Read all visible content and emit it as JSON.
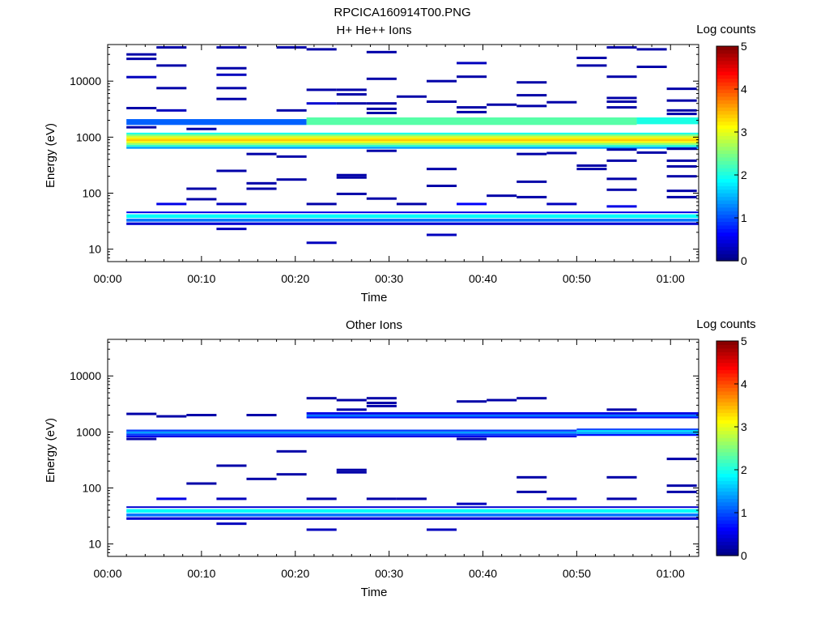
{
  "figure": {
    "title": "RPCICA160914T00.PNG"
  },
  "chart_data": [
    {
      "type": "heatmap",
      "title": "H+ He++ Ions",
      "xlabel": "Time",
      "ylabel": "Energy (eV)",
      "colorbar_label": "Log counts",
      "colorbar_ticks": [
        "0",
        "1",
        "2",
        "3",
        "4",
        "5"
      ],
      "clim": [
        0,
        5
      ],
      "colormap": "jet",
      "x_ticks": [
        "00:00",
        "00:10",
        "00:20",
        "00:30",
        "00:40",
        "00:50",
        "01:00"
      ],
      "x_range_minutes": [
        0,
        63
      ],
      "y_scale": "log",
      "y_range_eV": [
        6,
        45000
      ],
      "y_ticks": [
        "10",
        "100",
        "1000",
        "10000"
      ],
      "grid": false,
      "sample_time_minutes": [
        2,
        5.2,
        8.4,
        11.6,
        14.8,
        18,
        21.2,
        24.4,
        27.6,
        30.8,
        34,
        37.2,
        40.4,
        43.6,
        46.8,
        50,
        53.2,
        56.4,
        59.6
      ],
      "bands": [
        {
          "from_min": 2,
          "to_min": 63,
          "energy_low_eV": 620,
          "energy_high_eV": 1200,
          "log_counts_profile": [
            [
              650,
              1.4
            ],
            [
              700,
              2.1
            ],
            [
              760,
              2.6
            ],
            [
              820,
              3.1
            ],
            [
              880,
              3.4
            ],
            [
              950,
              3.2
            ],
            [
              1020,
              2.9
            ],
            [
              1100,
              2.4
            ],
            [
              1180,
              1.9
            ]
          ]
        },
        {
          "from_min": 2,
          "to_min": 21.2,
          "energy_low_eV": 1650,
          "energy_high_eV": 2100,
          "log_counts": 1.1
        },
        {
          "from_min": 21.2,
          "to_min": 56.4,
          "energy_low_eV": 1650,
          "energy_high_eV": 2250,
          "log_counts": 2.3
        },
        {
          "from_min": 56.4,
          "to_min": 63,
          "energy_low_eV": 1700,
          "energy_high_eV": 2250,
          "log_counts": 2.0
        },
        {
          "from_min": 2,
          "to_min": 63,
          "energy_low_eV": 44,
          "energy_high_eV": 47,
          "log_counts": 0.5
        },
        {
          "from_min": 2,
          "to_min": 63,
          "energy_low_eV": 36,
          "energy_high_eV": 42,
          "log_counts": 1.9
        },
        {
          "from_min": 2,
          "to_min": 63,
          "energy_low_eV": 31,
          "energy_high_eV": 35,
          "log_counts": 1.2
        },
        {
          "from_min": 2,
          "to_min": 63,
          "energy_low_eV": 27,
          "energy_high_eV": 30,
          "log_counts": 0.4
        }
      ],
      "isolated_bins": [
        [
          2,
          30000,
          0.2
        ],
        [
          2,
          25000,
          0.2
        ],
        [
          2,
          11800,
          0.3
        ],
        [
          2,
          3300,
          0.2
        ],
        [
          2,
          1500,
          0.2
        ],
        [
          5.2,
          40000,
          0.2
        ],
        [
          5.2,
          19000,
          0.2
        ],
        [
          5.2,
          7500,
          0.2
        ],
        [
          5.2,
          3000,
          0.3
        ],
        [
          5.2,
          64,
          0.5
        ],
        [
          8.4,
          1400,
          0.2
        ],
        [
          8.4,
          120,
          0.2
        ],
        [
          8.4,
          78,
          0.2
        ],
        [
          11.6,
          40000,
          0.2
        ],
        [
          11.6,
          17000,
          0.2
        ],
        [
          11.6,
          13000,
          0.3
        ],
        [
          11.6,
          7500,
          0.2
        ],
        [
          11.6,
          4800,
          0.2
        ],
        [
          11.6,
          250,
          0.2
        ],
        [
          11.6,
          64,
          0.3
        ],
        [
          11.6,
          23,
          0.3
        ],
        [
          14.8,
          500,
          0.2
        ],
        [
          14.8,
          150,
          0.2
        ],
        [
          14.8,
          120,
          0.2
        ],
        [
          18,
          40000,
          0.2
        ],
        [
          18,
          3000,
          0.2
        ],
        [
          18,
          450,
          0.2
        ],
        [
          18,
          175,
          0.2
        ],
        [
          21.2,
          37000,
          0.2
        ],
        [
          21.2,
          7000,
          0.2
        ],
        [
          21.2,
          4000,
          0.4
        ],
        [
          21.2,
          64,
          0.2
        ],
        [
          21.2,
          13,
          0.3
        ],
        [
          24.4,
          7000,
          0.2
        ],
        [
          24.4,
          5800,
          0.2
        ],
        [
          24.4,
          4000,
          0.2
        ],
        [
          24.4,
          210,
          0.2
        ],
        [
          24.4,
          190,
          0.2
        ],
        [
          24.4,
          97,
          0.2
        ],
        [
          27.6,
          33000,
          0.2
        ],
        [
          27.6,
          11000,
          0.2
        ],
        [
          27.6,
          4000,
          0.2
        ],
        [
          27.6,
          3200,
          0.2
        ],
        [
          27.6,
          2700,
          0.2
        ],
        [
          27.6,
          570,
          0.2
        ],
        [
          27.6,
          80,
          0.2
        ],
        [
          30.8,
          5300,
          0.2
        ],
        [
          30.8,
          64,
          0.2
        ],
        [
          34,
          10000,
          0.2
        ],
        [
          34,
          4300,
          0.2
        ],
        [
          34,
          270,
          0.2
        ],
        [
          34,
          135,
          0.2
        ],
        [
          34,
          18,
          0.3
        ],
        [
          37.2,
          21000,
          0.3
        ],
        [
          37.2,
          12000,
          0.2
        ],
        [
          37.2,
          3400,
          0.2
        ],
        [
          37.2,
          2800,
          0.2
        ],
        [
          37.2,
          64,
          0.6
        ],
        [
          40.4,
          3800,
          0.2
        ],
        [
          40.4,
          90,
          0.2
        ],
        [
          43.6,
          9500,
          0.2
        ],
        [
          43.6,
          5600,
          0.2
        ],
        [
          43.6,
          3600,
          0.2
        ],
        [
          43.6,
          500,
          0.2
        ],
        [
          43.6,
          160,
          0.2
        ],
        [
          43.6,
          85,
          0.2
        ],
        [
          46.8,
          4200,
          0.2
        ],
        [
          46.8,
          520,
          0.2
        ],
        [
          46.8,
          64,
          0.3
        ],
        [
          50,
          26000,
          0.2
        ],
        [
          50,
          19000,
          0.2
        ],
        [
          50,
          310,
          0.2
        ],
        [
          50,
          270,
          0.2
        ],
        [
          53.2,
          40000,
          0.2
        ],
        [
          53.2,
          12000,
          0.2
        ],
        [
          53.2,
          5000,
          0.2
        ],
        [
          53.2,
          4300,
          0.2
        ],
        [
          53.2,
          3400,
          0.2
        ],
        [
          53.2,
          600,
          0.2
        ],
        [
          53.2,
          380,
          0.2
        ],
        [
          53.2,
          180,
          0.2
        ],
        [
          53.2,
          115,
          0.2
        ],
        [
          53.2,
          58,
          0.5
        ],
        [
          56.4,
          37000,
          0.2
        ],
        [
          56.4,
          18000,
          0.2
        ],
        [
          56.4,
          530,
          0.2
        ],
        [
          59.6,
          7300,
          0.2
        ],
        [
          59.6,
          4500,
          0.2
        ],
        [
          59.6,
          3000,
          0.2
        ],
        [
          59.6,
          2600,
          0.2
        ],
        [
          59.6,
          620,
          0.2
        ],
        [
          59.6,
          380,
          0.2
        ],
        [
          59.6,
          300,
          0.2
        ],
        [
          59.6,
          200,
          0.2
        ],
        [
          59.6,
          110,
          0.2
        ],
        [
          59.6,
          85,
          0.2
        ]
      ]
    },
    {
      "type": "heatmap",
      "title": "Other Ions",
      "xlabel": "Time",
      "ylabel": "Energy (eV)",
      "colorbar_label": "Log counts",
      "colorbar_ticks": [
        "0",
        "1",
        "2",
        "3",
        "4",
        "5"
      ],
      "clim": [
        0,
        5
      ],
      "colormap": "jet",
      "x_ticks": [
        "00:00",
        "00:10",
        "00:20",
        "00:30",
        "00:40",
        "00:50",
        "01:00"
      ],
      "x_range_minutes": [
        0,
        63
      ],
      "y_scale": "log",
      "y_range_eV": [
        6,
        45000
      ],
      "y_ticks": [
        "10",
        "100",
        "1000",
        "10000"
      ],
      "grid": false,
      "sample_time_minutes": [
        2,
        5.2,
        8.4,
        11.6,
        14.8,
        18,
        21.2,
        24.4,
        27.6,
        30.8,
        34,
        37.2,
        40.4,
        43.6,
        46.8,
        50,
        53.2,
        56.4,
        59.6
      ],
      "bands": [
        {
          "from_min": 2,
          "to_min": 50,
          "energy_low_eV": 800,
          "energy_high_eV": 1100,
          "log_counts_profile": [
            [
              830,
              0.5
            ],
            [
              900,
              0.9
            ],
            [
              980,
              1.4
            ],
            [
              1060,
              0.9
            ]
          ]
        },
        {
          "from_min": 50,
          "to_min": 63,
          "energy_low_eV": 850,
          "energy_high_eV": 1150,
          "log_counts_profile": [
            [
              880,
              0.7
            ],
            [
              960,
              1.4
            ],
            [
              1050,
              1.7
            ],
            [
              1120,
              0.9
            ]
          ]
        },
        {
          "from_min": 21.2,
          "to_min": 63,
          "energy_low_eV": 1750,
          "energy_high_eV": 2250,
          "log_counts_profile": [
            [
              1800,
              0.7
            ],
            [
              1950,
              1.2
            ],
            [
              2150,
              0.5
            ]
          ]
        },
        {
          "from_min": 2,
          "to_min": 63,
          "energy_low_eV": 44,
          "energy_high_eV": 47,
          "log_counts": 0.4
        },
        {
          "from_min": 2,
          "to_min": 63,
          "energy_low_eV": 36,
          "energy_high_eV": 42,
          "log_counts": 1.9
        },
        {
          "from_min": 2,
          "to_min": 63,
          "energy_low_eV": 31,
          "energy_high_eV": 35,
          "log_counts": 1.2
        },
        {
          "from_min": 2,
          "to_min": 63,
          "energy_low_eV": 27,
          "energy_high_eV": 30,
          "log_counts": 0.4
        }
      ],
      "isolated_bins": [
        [
          2,
          2100,
          0.2
        ],
        [
          2,
          750,
          0.2
        ],
        [
          5.2,
          1900,
          0.2
        ],
        [
          5.2,
          64,
          0.5
        ],
        [
          8.4,
          2000,
          0.2
        ],
        [
          8.4,
          120,
          0.2
        ],
        [
          11.6,
          250,
          0.2
        ],
        [
          11.6,
          64,
          0.3
        ],
        [
          11.6,
          23,
          0.3
        ],
        [
          14.8,
          2000,
          0.2
        ],
        [
          14.8,
          145,
          0.2
        ],
        [
          18,
          450,
          0.2
        ],
        [
          18,
          175,
          0.2
        ],
        [
          21.2,
          4000,
          0.2
        ],
        [
          21.2,
          64,
          0.2
        ],
        [
          21.2,
          18,
          0.3
        ],
        [
          24.4,
          3700,
          0.2
        ],
        [
          24.4,
          2500,
          0.2
        ],
        [
          24.4,
          210,
          0.2
        ],
        [
          24.4,
          190,
          0.2
        ],
        [
          27.6,
          4000,
          0.2
        ],
        [
          27.6,
          3300,
          0.2
        ],
        [
          27.6,
          2900,
          0.2
        ],
        [
          27.6,
          64,
          0.2
        ],
        [
          30.8,
          64,
          0.2
        ],
        [
          34,
          18,
          0.3
        ],
        [
          37.2,
          3500,
          0.2
        ],
        [
          37.2,
          750,
          0.2
        ],
        [
          37.2,
          52,
          0.3
        ],
        [
          40.4,
          3700,
          0.2
        ],
        [
          43.6,
          4000,
          0.2
        ],
        [
          43.6,
          155,
          0.2
        ],
        [
          43.6,
          85,
          0.2
        ],
        [
          46.8,
          64,
          0.3
        ],
        [
          53.2,
          2500,
          0.2
        ],
        [
          53.2,
          155,
          0.2
        ],
        [
          53.2,
          64,
          0.2
        ],
        [
          59.6,
          330,
          0.2
        ],
        [
          59.6,
          110,
          0.2
        ],
        [
          59.6,
          85,
          0.2
        ]
      ]
    }
  ]
}
